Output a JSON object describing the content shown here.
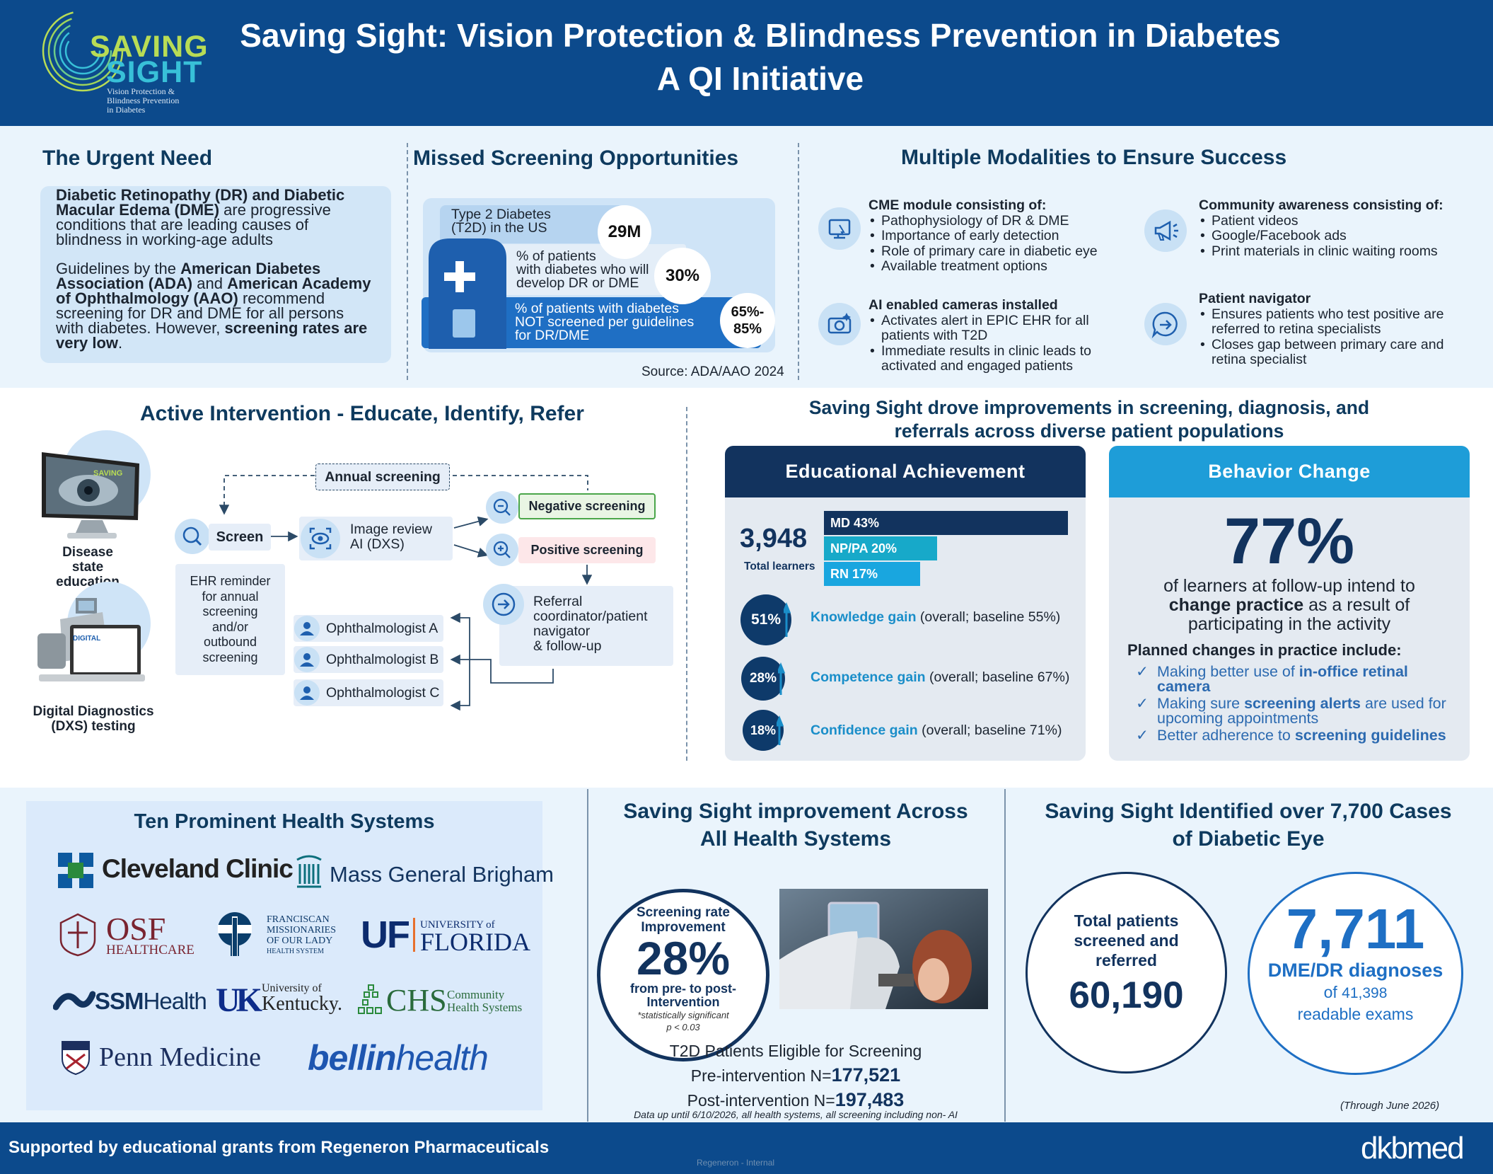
{
  "header": {
    "logo": {
      "line1": "SAVING",
      "line2": "SIGHT",
      "tag1": "Vision Protection &",
      "tag2": "Blindness Prevention",
      "tag3": "in Diabetes"
    },
    "title_line1": "Saving Sight: Vision Protection & Blindness Prevention in Diabetes",
    "title_line2": "A QI Initiative"
  },
  "urgent": {
    "heading": "The Urgent Need",
    "p1_bold": "Diabetic Retinopathy (DR) and Diabetic Macular Edema (DME)",
    "p1_rest": " are progressive conditions that are leading causes of blindness in working-age adults",
    "p2_a": "Guidelines by the ",
    "p2_b": "American Diabetes Association (ADA)",
    "p2_c": " and ",
    "p2_d": "American Academy of Ophthalmology (AAO)",
    "p2_e": " recommend screening for DR and DME for all persons with diabetes. However, ",
    "p2_f": "screening rates are very low",
    "p2_g": "."
  },
  "missed": {
    "heading": "Missed Screening Opportunities",
    "row1_label_1": "Type 2 Diabetes",
    "row1_label_2": "(T2D) in the US",
    "row1_value": "29M",
    "row2_label_1": "% of patients",
    "row2_label_2": "with diabetes who will",
    "row2_label_3": "develop DR or DME",
    "row2_value": "30%",
    "row3_label_1": "% of patients with diabetes",
    "row3_label_2": "NOT screened per guidelines",
    "row3_label_3": "for DR/DME",
    "row3_value_1": "65%-",
    "row3_value_2": "85%",
    "source": "Source: ADA/AAO 2024"
  },
  "modalities": {
    "heading": "Multiple Modalities to Ensure Success",
    "cme_title": "CME module consisting of:",
    "cme_items": [
      "Pathophysiology of DR & DME",
      "Importance of early detection",
      "Role of primary care in diabetic eye",
      "Available treatment options"
    ],
    "ai_title": "AI enabled cameras installed",
    "ai_items": [
      "Activates alert in EPIC EHR for all patients with T2D",
      "Immediate results in clinic leads to activated and engaged patients"
    ],
    "community_title": "Community awareness consisting of:",
    "community_items": [
      "Patient videos",
      "Google/Facebook ads",
      "Print materials in clinic waiting rooms"
    ],
    "navigator_title": "Patient navigator",
    "navigator_items": [
      "Ensures patients who test positive are referred to retina specialists",
      "Closes gap between primary care and retina specialist"
    ]
  },
  "intervention": {
    "heading": "Active Intervention - Educate, Identify, Refer",
    "disease_label_1": "Disease state",
    "disease_label_2": "education",
    "dxs_label_1": "Digital Diagnostics",
    "dxs_label_2": "(DXS) testing",
    "monitor_logo": "SAVING",
    "device_logo": "DIGITAL",
    "annual": "Annual screening",
    "screen": "Screen",
    "ehr_1": "EHR reminder",
    "ehr_2": "for annual",
    "ehr_3": "screening",
    "ehr_4": "and/or",
    "ehr_5": "outbound",
    "ehr_6": "screening",
    "review_1": "Image review",
    "review_2": "AI (DXS)",
    "negative": "Negative screening",
    "positive": "Positive screening",
    "referral_1": "Referral",
    "referral_2": "coordinator/patient",
    "referral_3": "navigator",
    "referral_4": "& follow-up",
    "ophthalmologists": [
      "Ophthalmologist A",
      "Ophthalmologist B",
      "Ophthalmologist C"
    ]
  },
  "results": {
    "heading_1": "Saving Sight drove improvements in screening, diagnosis, and",
    "heading_2": "referrals across diverse patient populations",
    "edu": {
      "title": "Educational Achievement",
      "total": "3,948",
      "total_label": "Total learners",
      "bars": [
        {
          "label": "MD 43%",
          "value": 43,
          "color": "#12335e"
        },
        {
          "label": "NP/PA 20%",
          "value": 20,
          "color": "#17a9c9"
        },
        {
          "label": "RN 17%",
          "value": 17,
          "color": "#19a6df"
        }
      ],
      "gains": [
        {
          "pct": "51%",
          "name": "Knowledge gain",
          "note": " (overall; baseline 55%)"
        },
        {
          "pct": "28%",
          "name": "Competence gain",
          "note": " (overall; baseline 67%)"
        },
        {
          "pct": "18%",
          "name": "Confidence gain",
          "note": " (overall; baseline 71%)"
        }
      ]
    },
    "beh": {
      "title": "Behavior Change",
      "big": "77%",
      "l1": "of learners at follow-up intend to",
      "l2_bold": "change practice",
      "l2_rest": " as a result of",
      "l3": "participating in the activity",
      "planned": "Planned changes in practice include:",
      "c1a": "Making better use of ",
      "c1b": "in-office retinal",
      "c1c": "camera",
      "c2a": "Making sure ",
      "c2b": "screening alerts",
      "c2c": " are used for",
      "c2d": "upcoming appointments",
      "c3a": "Better adherence to ",
      "c3b": "screening guidelines"
    }
  },
  "systems": {
    "heading": "Ten Prominent Health Systems",
    "logos": {
      "cleveland": "Cleveland Clinic",
      "mgb": "Mass General Brigham",
      "osf_1": "OSF",
      "osf_2": "HEALTHCARE",
      "fran_1": "FRANCISCAN",
      "fran_2": "MISSIONARIES",
      "fran_3": "OF OUR LADY",
      "fran_4": "HEALTH SYSTEM",
      "uf_1": "UF",
      "uf_2": "UNIVERSITY of",
      "uf_3": "FLORIDA",
      "ssm_1": "SSM",
      "ssm_2": "Health",
      "uk_1": "UK",
      "uk_2": "University of",
      "uk_3": "Kentucky.",
      "chs_1": "CHS",
      "chs_2": "Community",
      "chs_3": "Health Systems",
      "penn": "Penn Medicine",
      "bellin_1": "bellin",
      "bellin_2": "health"
    }
  },
  "improvement": {
    "heading_1": "Saving Sight improvement Across",
    "heading_2": "All Health Systems",
    "c1": "Screening rate",
    "c2": "Improvement",
    "pct": "28%",
    "c3": "from pre- to post-",
    "c4": "Intervention",
    "c5": "*statistically significant",
    "c6": "p < 0.03",
    "eligible": "T2D Patients Eligible for Screening",
    "pre_label": "Pre-intervention N=",
    "pre_value": "177,521",
    "post_label": "Post-intervention N=",
    "post_value": "197,483",
    "note": "Data up until 6/10/2026, all health systems, all screening including non- AI"
  },
  "identified": {
    "heading_1": "Saving Sight Identified over 7,700 Cases",
    "heading_2": "of Diabetic Eye",
    "a1": "Total patients",
    "a2": "screened and",
    "a3": "referred",
    "a_value": "60,190",
    "b_value": "7,711",
    "b1": "DME/DR diagnoses",
    "b2a": "of ",
    "b2b": "41,398",
    "b3": "readable exams",
    "through": "(Through June 2026)"
  },
  "footer": {
    "support": "Supported by educational grants from Regeneron Pharmaceuticals",
    "internal": "Regeneron - Internal",
    "brand": "dkbmed"
  }
}
